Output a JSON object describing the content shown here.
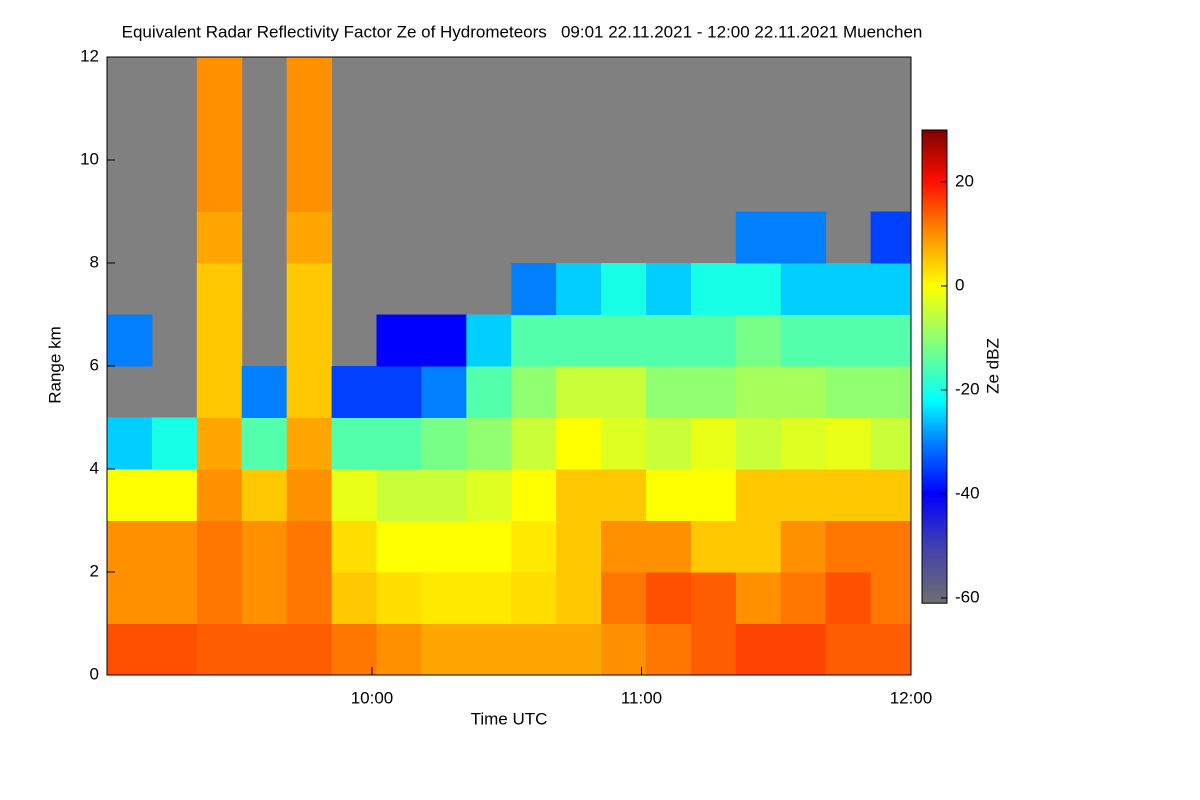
{
  "chart_data": {
    "type": "heatmap",
    "title": "Equivalent Radar Reflectivity Factor Ze of Hydrometeors   09:01 22.11.2021 - 12:00 22.11.2021 Muenchen",
    "x_label": "Time UTC",
    "y_label": "Range km",
    "colorbar_label": "Ze dBZ",
    "xlim": [
      541,
      720
    ],
    "xticks": [
      {
        "value": 600,
        "label": "10:00"
      },
      {
        "value": 660,
        "label": "11:00"
      },
      {
        "value": 720,
        "label": "12:00"
      }
    ],
    "ylim": [
      0,
      12
    ],
    "yticks": [
      0,
      2,
      4,
      6,
      8,
      10,
      12
    ],
    "clim": [
      -61,
      30
    ],
    "cticks": [
      -60,
      -40,
      -20,
      0,
      20
    ],
    "missing_color": "#808080",
    "colorscale": [
      [
        -61,
        "#6e6e6e"
      ],
      [
        -50,
        "#4040b0"
      ],
      [
        -40,
        "#0000ff"
      ],
      [
        -30,
        "#0080ff"
      ],
      [
        -22,
        "#00ffff"
      ],
      [
        -10,
        "#90ff70"
      ],
      [
        0,
        "#ffff00"
      ],
      [
        10,
        "#ff9000"
      ],
      [
        20,
        "#ff1000"
      ],
      [
        30,
        "#800000"
      ]
    ],
    "x_bins": [
      541,
      551,
      561,
      571,
      581,
      591,
      601,
      611,
      621,
      631,
      641,
      651,
      661,
      671,
      681,
      691,
      701,
      711,
      720
    ],
    "y_bins": [
      0,
      1,
      2,
      3,
      4,
      5,
      6,
      7,
      8,
      9,
      10,
      11,
      12
    ],
    "z": [
      [
        15,
        15,
        14,
        14,
        14,
        12,
        10,
        8,
        8,
        8,
        8,
        10,
        12,
        14,
        16,
        16,
        14,
        14
      ],
      [
        10,
        10,
        12,
        10,
        12,
        5,
        3,
        2,
        2,
        3,
        5,
        12,
        15,
        14,
        10,
        12,
        15,
        12
      ],
      [
        10,
        10,
        12,
        10,
        12,
        3,
        0,
        0,
        0,
        2,
        5,
        10,
        10,
        5,
        5,
        10,
        12,
        12
      ],
      [
        0,
        0,
        10,
        5,
        10,
        -2,
        -5,
        -5,
        -3,
        0,
        5,
        5,
        0,
        0,
        5,
        5,
        5,
        5
      ],
      [
        -25,
        -20,
        8,
        -15,
        8,
        -15,
        -15,
        -12,
        -10,
        -5,
        0,
        -3,
        -5,
        -2,
        -5,
        -3,
        -2,
        -5
      ],
      [
        null,
        null,
        5,
        -30,
        5,
        -35,
        -35,
        -30,
        -15,
        -10,
        -5,
        -5,
        -10,
        -10,
        -8,
        -8,
        -10,
        -10
      ],
      [
        -30,
        null,
        5,
        null,
        5,
        null,
        -40,
        -40,
        -25,
        -15,
        -15,
        -15,
        -15,
        -15,
        -12,
        -15,
        -15,
        -15
      ],
      [
        null,
        null,
        5,
        null,
        5,
        null,
        null,
        null,
        null,
        -30,
        -25,
        -20,
        -25,
        -20,
        -20,
        -25,
        -25,
        -25
      ],
      [
        null,
        null,
        8,
        null,
        8,
        null,
        null,
        null,
        null,
        null,
        null,
        null,
        null,
        null,
        -30,
        -30,
        null,
        -35
      ],
      [
        null,
        null,
        10,
        null,
        10,
        null,
        null,
        null,
        null,
        null,
        null,
        null,
        null,
        null,
        null,
        null,
        null,
        null
      ],
      [
        null,
        null,
        10,
        null,
        10,
        null,
        null,
        null,
        null,
        null,
        null,
        null,
        null,
        null,
        null,
        null,
        null,
        null
      ],
      [
        null,
        null,
        10,
        null,
        10,
        null,
        null,
        null,
        null,
        null,
        null,
        null,
        null,
        null,
        null,
        null,
        null,
        null
      ]
    ]
  }
}
